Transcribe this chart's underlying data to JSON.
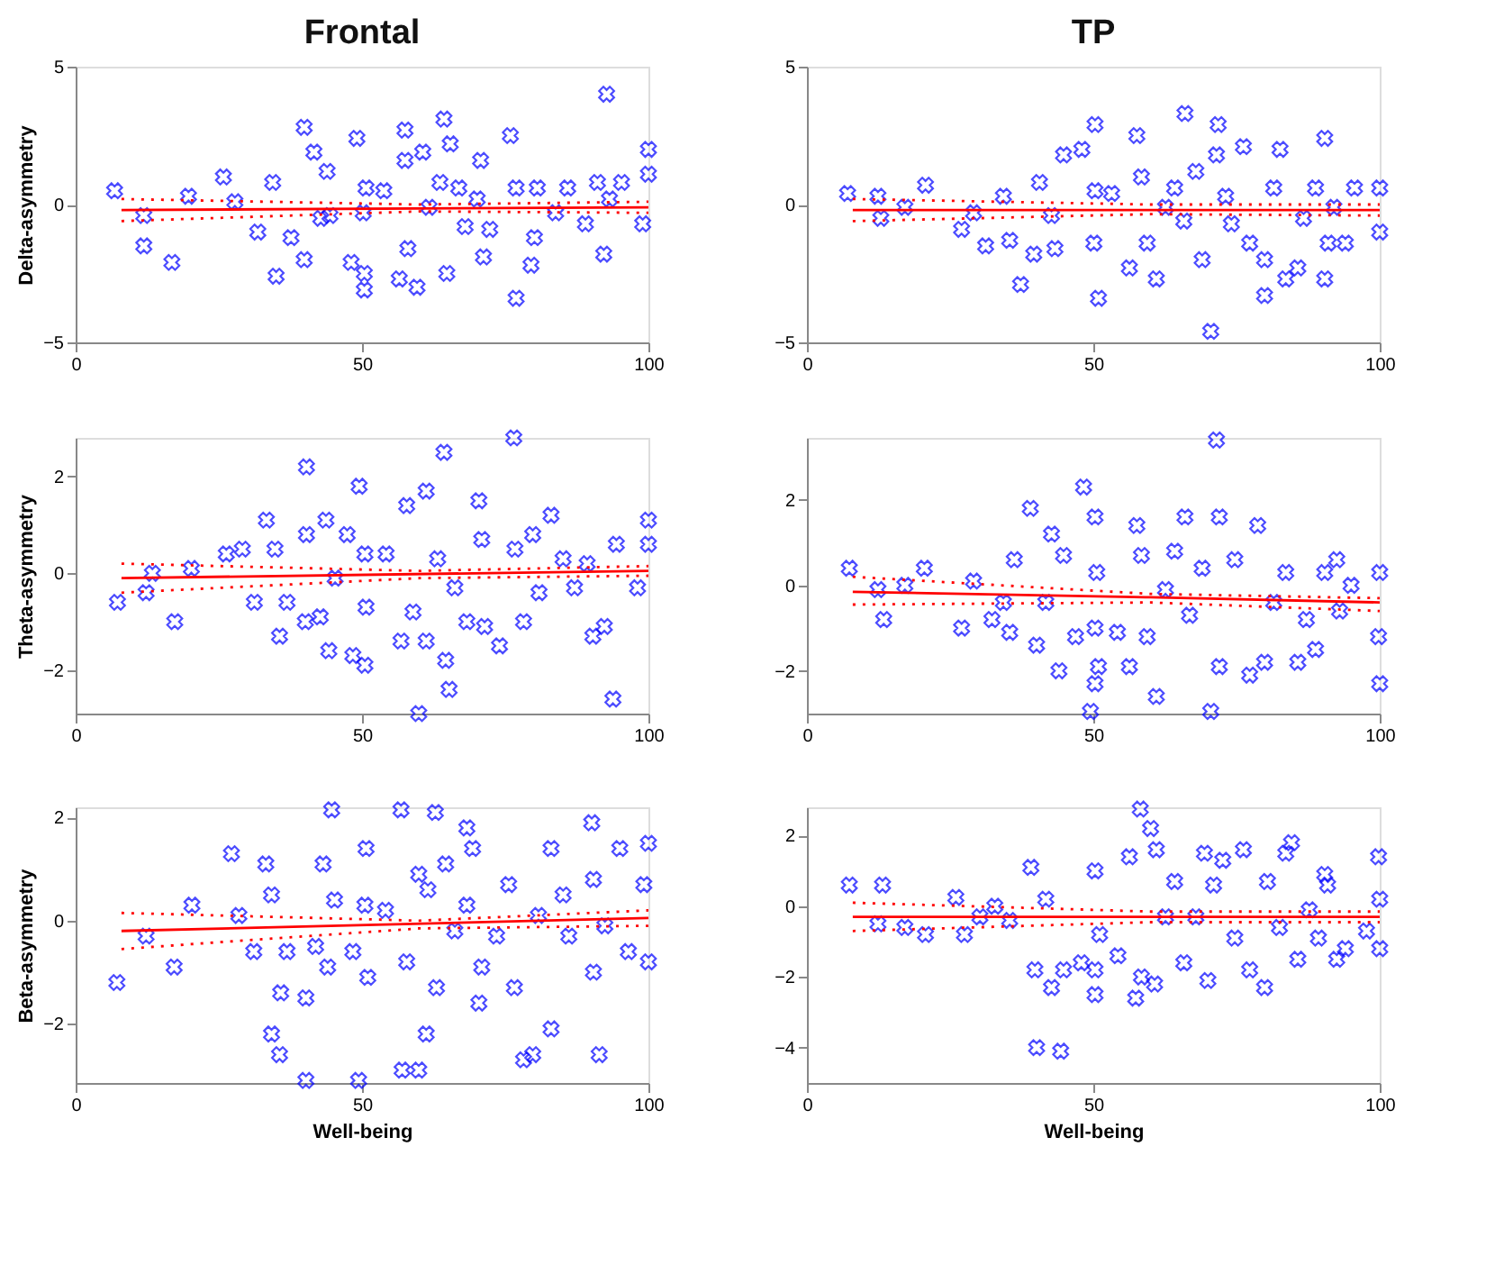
{
  "chart_data": [
    {
      "type": "scatter",
      "title": "Frontal",
      "ylabel": "Delta-asymmetry",
      "xlim": [
        0,
        100
      ],
      "xticks": [
        0,
        50,
        100
      ],
      "ylim": [
        -5,
        5
      ],
      "yticks": [
        -5,
        0,
        5
      ],
      "series": [
        {
          "color": "#0000ff",
          "marker": "cross",
          "x": [
            6.8,
            11.9,
            11.9,
            16.8,
            19.7,
            25.8,
            27.8,
            31.8,
            35,
            34.4,
            37.6,
            39.9,
            39.9,
            41.6,
            42.8,
            43.9,
            44.4,
            48.1,
            49.1,
            50.4,
            50.4,
            50.2,
            50.7,
            53.8,
            56.5,
            57.5,
            57.5,
            58,
            59.6,
            60.6,
            61.7,
            63.6,
            64.3,
            64.8,
            65.4,
            66.9,
            68,
            70.1,
            70.7,
            71.2,
            72.3,
            75.9,
            76.9,
            76.9,
            79.5,
            80.1,
            80.6,
            83.8,
            85.9,
            89,
            91.1,
            92.2,
            92.7,
            93.2,
            95.3,
            99,
            100,
            100
          ],
          "values": [
            0.5,
            -0.4,
            -1.5,
            -2.1,
            0.3,
            1.0,
            0.1,
            -1.0,
            -2.6,
            0.8,
            -1.2,
            2.8,
            -2.0,
            1.9,
            -0.5,
            1.2,
            -0.4,
            -2.1,
            2.4,
            -2.5,
            -3.1,
            -0.3,
            0.6,
            0.5,
            -2.7,
            2.7,
            1.6,
            -1.6,
            -3.0,
            1.9,
            -0.1,
            0.8,
            3.1,
            -2.5,
            2.2,
            0.6,
            -0.8,
            0.2,
            1.6,
            -1.9,
            -0.9,
            2.5,
            -3.4,
            0.6,
            -2.2,
            -1.2,
            0.6,
            -0.3,
            0.6,
            -0.7,
            0.8,
            -1.8,
            4.0,
            0.2,
            0.8,
            -0.7,
            2.0,
            1.1
          ]
        },
        {
          "type": "line",
          "color": "#ff0000",
          "line_style": "solid",
          "x": [
            8,
            100
          ],
          "values": [
            -0.2,
            -0.1
          ]
        },
        {
          "type": "line",
          "color": "#ff0000",
          "line_style": "dotted",
          "x": [
            8,
            60,
            100
          ],
          "values": [
            0.2,
            0.0,
            0.1
          ]
        },
        {
          "type": "line",
          "color": "#ff0000",
          "line_style": "dotted",
          "x": [
            8,
            60,
            100
          ],
          "values": [
            -0.6,
            -0.25,
            -0.3
          ]
        }
      ]
    },
    {
      "type": "scatter",
      "title": "TP",
      "xlim": [
        0,
        100
      ],
      "xticks": [
        0,
        50,
        100
      ],
      "ylim": [
        -5,
        5
      ],
      "yticks": [
        -5,
        0,
        5
      ],
      "series": [
        {
          "color": "#0000ff",
          "marker": "cross",
          "x": [
            7.1,
            12.4,
            12.9,
            17.1,
            20.7,
            27,
            29.1,
            31.2,
            34.3,
            35.4,
            37.3,
            39.6,
            40.6,
            42.7,
            43.3,
            44.8,
            48,
            50.3,
            50.3,
            50.1,
            50.9,
            53.2,
            56.3,
            57.6,
            58.4,
            59.4,
            61,
            62.6,
            64.2,
            65.8,
            66,
            67.9,
            69,
            70.5,
            71.5,
            71.8,
            73.1,
            74.1,
            76.2,
            77.3,
            79.9,
            79.9,
            81.5,
            82.6,
            83.6,
            85.7,
            86.7,
            88.8,
            90.4,
            90.4,
            91,
            92,
            94,
            95.6,
            100,
            100
          ],
          "values": [
            0.4,
            0.3,
            -0.5,
            -0.1,
            0.7,
            -0.9,
            -0.3,
            -1.5,
            0.3,
            -1.3,
            -2.9,
            -1.8,
            0.8,
            -0.4,
            -1.6,
            1.8,
            2.0,
            2.9,
            0.5,
            -1.4,
            -3.4,
            0.4,
            -2.3,
            2.5,
            1.0,
            -1.4,
            -2.7,
            -0.1,
            0.6,
            -0.6,
            3.3,
            1.2,
            -2.0,
            -4.6,
            1.8,
            2.9,
            0.3,
            -0.7,
            2.1,
            -1.4,
            -2.0,
            -3.3,
            0.6,
            2.0,
            -2.7,
            -2.3,
            -0.5,
            0.6,
            2.4,
            -2.7,
            -1.4,
            -0.1,
            -1.4,
            0.6,
            -1.0,
            0.6
          ]
        },
        {
          "type": "line",
          "color": "#ff0000",
          "line_style": "solid",
          "x": [
            8,
            100
          ],
          "values": [
            -0.2,
            -0.2
          ]
        },
        {
          "type": "line",
          "color": "#ff0000",
          "line_style": "dotted",
          "x": [
            8,
            60,
            100
          ],
          "values": [
            0.2,
            0.0,
            0.0
          ]
        },
        {
          "type": "line",
          "color": "#ff0000",
          "line_style": "dotted",
          "x": [
            8,
            60,
            100
          ],
          "values": [
            -0.6,
            -0.35,
            -0.4
          ]
        }
      ]
    },
    {
      "type": "scatter",
      "ylabel": "Theta-asymmetry",
      "xlim": [
        0,
        100
      ],
      "xticks": [
        0,
        50,
        100
      ],
      "ylim": [
        -2.9,
        2.8
      ],
      "yticks": [
        -2,
        0,
        2
      ],
      "series": [
        {
          "color": "#0000ff",
          "marker": "cross",
          "x": [
            7.3,
            12.3,
            13.4,
            17.3,
            20.2,
            26.3,
            29.1,
            31.2,
            33.3,
            34.8,
            35.6,
            36.9,
            40.3,
            40.3,
            40.1,
            42.7,
            43.7,
            44.2,
            45.3,
            47.4,
            48.4,
            49.5,
            50.5,
            50.5,
            50.7,
            54.2,
            56.8,
            57.8,
            58.9,
            59.9,
            61.2,
            61.2,
            63.2,
            64.3,
            64.6,
            65.2,
            66.2,
            68.3,
            70.4,
            70.9,
            71.4,
            74,
            76.5,
            76.7,
            78.2,
            79.8,
            80.9,
            83,
            85.1,
            87.1,
            89.3,
            90.3,
            92.3,
            93.8,
            94.4,
            98.1,
            100,
            100
          ],
          "values": [
            -0.6,
            -0.4,
            0,
            -1.0,
            0.1,
            0.4,
            0.5,
            -0.6,
            1.1,
            0.5,
            -1.3,
            -0.6,
            0.8,
            2.2,
            -1.0,
            -0.9,
            1.1,
            -1.6,
            -0.1,
            0.8,
            -1.7,
            1.8,
            -1.9,
            0.4,
            -0.7,
            0.4,
            -1.4,
            1.4,
            -0.8,
            -2.9,
            1.7,
            -1.4,
            0.3,
            2.5,
            -1.8,
            -2.4,
            -0.3,
            -1.0,
            1.5,
            0.7,
            -1.1,
            -1.5,
            2.8,
            0.5,
            -1.0,
            0.8,
            -0.4,
            1.2,
            0.3,
            -0.3,
            0.2,
            -1.3,
            -1.1,
            -2.6,
            0.6,
            -0.3,
            1.1,
            0.6
          ]
        },
        {
          "type": "line",
          "color": "#ff0000",
          "line_style": "solid",
          "x": [
            8,
            100
          ],
          "values": [
            -0.1,
            0.05
          ]
        },
        {
          "type": "line",
          "color": "#ff0000",
          "line_style": "dotted",
          "x": [
            8,
            60,
            100
          ],
          "values": [
            0.2,
            0.05,
            0.15
          ]
        },
        {
          "type": "line",
          "color": "#ff0000",
          "line_style": "dotted",
          "x": [
            8,
            60,
            100
          ],
          "values": [
            -0.4,
            -0.1,
            -0.05
          ]
        }
      ]
    },
    {
      "type": "scatter",
      "xlim": [
        0,
        100
      ],
      "xticks": [
        0,
        50,
        100
      ],
      "ylim": [
        -3,
        3.45
      ],
      "yticks": [
        -2,
        0,
        2
      ],
      "series": [
        {
          "color": "#0000ff",
          "marker": "cross",
          "x": [
            7.4,
            12.4,
            13.4,
            17.1,
            20.5,
            27,
            29.1,
            32.3,
            34.3,
            35.4,
            36.2,
            39,
            40.1,
            41.7,
            42.7,
            44,
            44.8,
            46.9,
            48.3,
            50.3,
            50.3,
            50.6,
            49.5,
            50.9,
            50.3,
            54.2,
            56.3,
            57.6,
            58.4,
            59.4,
            61,
            62.6,
            64.2,
            66,
            66.8,
            69,
            70.5,
            71.5,
            72,
            72,
            74.7,
            77.3,
            78.7,
            79.9,
            81.5,
            83.6,
            85.7,
            87.2,
            88.8,
            90.4,
            92.5,
            93,
            95,
            99.8,
            100,
            100
          ],
          "values": [
            0.4,
            -0.1,
            -0.8,
            0,
            0.4,
            -1.0,
            0.1,
            -0.8,
            -0.4,
            -1.1,
            0.6,
            1.8,
            -1.4,
            -0.4,
            1.2,
            -2.0,
            0.7,
            -1.2,
            2.3,
            1.6,
            -1.0,
            0.3,
            -2.95,
            -1.9,
            -2.3,
            -1.1,
            -1.9,
            1.4,
            0.7,
            -1.2,
            -2.6,
            -0.1,
            0.8,
            1.6,
            -0.7,
            0.4,
            -2.95,
            3.4,
            1.6,
            -1.9,
            0.6,
            -2.1,
            1.4,
            -1.8,
            -0.4,
            0.3,
            -1.8,
            -0.8,
            -1.5,
            0.3,
            0.6,
            -0.6,
            0,
            -1.2,
            -2.3,
            0.3
          ]
        },
        {
          "type": "line",
          "color": "#ff0000",
          "line_style": "solid",
          "x": [
            8,
            60,
            100
          ],
          "values": [
            -0.15,
            -0.28,
            -0.4
          ]
        },
        {
          "type": "line",
          "color": "#ff0000",
          "line_style": "dotted",
          "x": [
            8,
            60,
            100
          ],
          "values": [
            0.2,
            -0.2,
            -0.3
          ]
        },
        {
          "type": "line",
          "color": "#ff0000",
          "line_style": "dotted",
          "x": [
            8,
            60,
            100
          ],
          "values": [
            -0.45,
            -0.4,
            -0.6
          ]
        }
      ]
    },
    {
      "type": "scatter",
      "xlabel": "Well-being",
      "ylabel": "Beta-asymmetry",
      "xlim": [
        0,
        100
      ],
      "xticks": [
        0,
        50,
        100
      ],
      "ylim": [
        -3.15,
        2.2
      ],
      "yticks": [
        -2,
        0,
        2
      ],
      "series": [
        {
          "color": "#0000ff",
          "marker": "cross",
          "x": [
            7.2,
            12.3,
            17.2,
            20.3,
            27.2,
            28.5,
            31.1,
            33.2,
            34.2,
            34.2,
            35.6,
            35.8,
            36.9,
            40.2,
            40.2,
            41.9,
            43.2,
            44,
            44.7,
            45.2,
            48.4,
            49.4,
            50.5,
            50.7,
            51,
            54.1,
            56.8,
            57,
            57.8,
            59.9,
            59.9,
            61.2,
            61.5,
            62.8,
            63,
            64.6,
            66.2,
            68.3,
            68.3,
            69.3,
            70.4,
            70.9,
            73.5,
            75.6,
            76.6,
            78.2,
            79.8,
            80.8,
            83,
            83,
            85.1,
            86.1,
            90.1,
            90.4,
            90.4,
            91.4,
            92.4,
            95,
            96.5,
            99.2,
            100,
            100
          ],
          "values": [
            -1.2,
            -0.3,
            -0.9,
            0.3,
            1.3,
            0.1,
            -0.6,
            1.1,
            0.5,
            -2.2,
            -2.6,
            -1.4,
            -0.6,
            -1.5,
            -3.1,
            -0.5,
            1.1,
            -0.9,
            2.15,
            0.4,
            -0.6,
            -3.1,
            0.3,
            1.4,
            -1.1,
            0.2,
            2.15,
            -2.9,
            -0.8,
            -2.9,
            0.9,
            -2.2,
            0.6,
            2.1,
            -1.3,
            1.1,
            -0.2,
            1.8,
            0.3,
            1.4,
            -1.6,
            -0.9,
            -0.3,
            0.7,
            -1.3,
            -2.7,
            -2.6,
            0.1,
            -2.1,
            1.4,
            0.5,
            -0.3,
            1.9,
            0.8,
            -1.0,
            -2.6,
            -0.1,
            1.4,
            -0.6,
            0.7,
            1.5,
            -0.8
          ]
        },
        {
          "type": "line",
          "color": "#ff0000",
          "line_style": "solid",
          "x": [
            8,
            100
          ],
          "values": [
            -0.2,
            0.05
          ]
        },
        {
          "type": "line",
          "color": "#ff0000",
          "line_style": "dotted",
          "x": [
            8,
            60,
            100
          ],
          "values": [
            0.15,
            0.0,
            0.2
          ]
        },
        {
          "type": "line",
          "color": "#ff0000",
          "line_style": "dotted",
          "x": [
            8,
            60,
            100
          ],
          "values": [
            -0.55,
            -0.15,
            -0.1
          ]
        }
      ]
    },
    {
      "type": "scatter",
      "xlabel": "Well-being",
      "xlim": [
        0,
        100
      ],
      "xticks": [
        0,
        50,
        100
      ],
      "ylim": [
        -5,
        2.8
      ],
      "yticks": [
        -4,
        -2,
        0,
        2
      ],
      "series": [
        {
          "color": "#0000ff",
          "marker": "cross",
          "x": [
            7.4,
            13.2,
            12.4,
            17.1,
            20.7,
            26,
            27.5,
            30.2,
            32.8,
            35.4,
            39.1,
            39.8,
            40.1,
            41.7,
            42.7,
            44.3,
            44.8,
            47.9,
            50.3,
            50.3,
            50.3,
            51.1,
            54.3,
            56.3,
            57.4,
            58.2,
            58.4,
            60,
            60.7,
            61,
            62.6,
            64.2,
            65.8,
            67.9,
            69.4,
            70,
            71,
            72.6,
            74.7,
            76.2,
            77.3,
            79.9,
            80.4,
            82.5,
            83.6,
            84.6,
            85.7,
            87.7,
            89.3,
            90.4,
            90.9,
            92.5,
            94,
            97.7,
            99.8,
            100,
            100
          ],
          "values": [
            0.6,
            0.6,
            -0.5,
            -0.6,
            -0.8,
            0.25,
            -0.8,
            -0.3,
            0,
            -0.4,
            1.1,
            -1.8,
            -4.0,
            0.2,
            -2.3,
            -4.1,
            -1.8,
            -1.6,
            1.0,
            -1.8,
            -2.5,
            -0.8,
            -1.4,
            1.4,
            -2.6,
            2.75,
            -2.0,
            2.2,
            -2.2,
            1.6,
            -0.3,
            0.7,
            -1.6,
            -0.3,
            1.5,
            -2.1,
            0.6,
            1.3,
            -0.9,
            1.6,
            -1.8,
            -2.3,
            0.7,
            -0.6,
            1.5,
            1.8,
            -1.5,
            -0.1,
            -0.9,
            0.9,
            0.6,
            -1.5,
            -1.2,
            -0.7,
            1.4,
            -1.2,
            0.2
          ]
        },
        {
          "type": "line",
          "color": "#ff0000",
          "line_style": "solid",
          "x": [
            8,
            100
          ],
          "values": [
            -0.3,
            -0.3
          ]
        },
        {
          "type": "line",
          "color": "#ff0000",
          "line_style": "dotted",
          "x": [
            8,
            60,
            100
          ],
          "values": [
            0.1,
            -0.15,
            -0.15
          ]
        },
        {
          "type": "line",
          "color": "#ff0000",
          "line_style": "dotted",
          "x": [
            8,
            60,
            100
          ],
          "values": [
            -0.7,
            -0.45,
            -0.45
          ]
        }
      ]
    }
  ]
}
